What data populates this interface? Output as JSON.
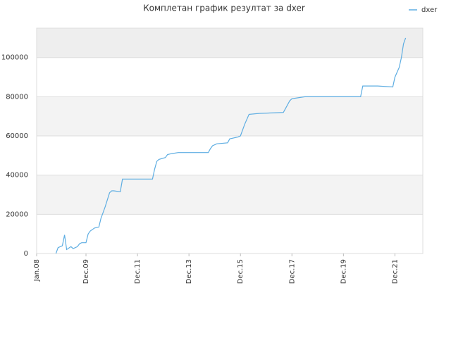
{
  "chart_data": {
    "type": "line",
    "title": "Комплетан график резултат за dxer",
    "x": [
      "Oct.08",
      "Nov.08",
      "Jan.09",
      "Feb.09",
      "Mar.09",
      "May.09",
      "Jun.09",
      "Aug.09",
      "Sep.09",
      "Oct.09",
      "Dec.09",
      "Jan.10",
      "Feb.10",
      "Apr.10",
      "Jun.10",
      "Jul.10",
      "Aug.10",
      "Sep.10",
      "Nov.10",
      "Dec.10",
      "Jan.11",
      "Apr.11",
      "May.11",
      "Jul.12",
      "Aug.12",
      "Sep.12",
      "Oct.12",
      "Jan.13",
      "Feb.13",
      "Apr.13",
      "Jul.13",
      "Sep.14",
      "Oct.14",
      "Nov.14",
      "Jan.15",
      "Jun.15",
      "Jul.15",
      "Nov.15",
      "Dec.15",
      "Feb.16",
      "Apr.16",
      "Sep.16",
      "Aug.17",
      "Sep.17",
      "Nov.17",
      "Dec.17",
      "Jun.18",
      "Aug.19",
      "Aug.20",
      "Sep.20",
      "Apr.21",
      "Nov.21",
      "Dec.21",
      "Feb.22",
      "Mar.22",
      "Apr.22",
      "May.22"
    ],
    "series": [
      {
        "name": "dxer",
        "color": "#5dade2",
        "values": [
          0,
          3000,
          4000,
          9500,
          2000,
          3500,
          2500,
          3500,
          5000,
          5500,
          5500,
          10000,
          11500,
          13000,
          13500,
          18000,
          21000,
          24000,
          31000,
          32000,
          32000,
          31500,
          38000,
          38000,
          43000,
          47000,
          48000,
          49000,
          50500,
          51000,
          51500,
          51500,
          53500,
          55000,
          56000,
          56500,
          58500,
          59500,
          60000,
          66000,
          71000,
          71500,
          72000,
          74000,
          78000,
          79000,
          80000,
          80000,
          80000,
          85500,
          85500,
          85000,
          90000,
          95000,
          100000,
          107000,
          110000
        ]
      }
    ],
    "xlim": [
      "Jan.08",
      "Jan.23"
    ],
    "xticks": [
      "Jan.08",
      "Dec.09",
      "Dec.11",
      "Dec.13",
      "Dec.15",
      "Dec.17",
      "Dec.19",
      "Dec.21"
    ],
    "ylim": [
      0,
      115000
    ],
    "yticks": [
      0,
      20000,
      40000,
      60000,
      80000,
      100000
    ],
    "grid": true,
    "legend": "top-right"
  }
}
